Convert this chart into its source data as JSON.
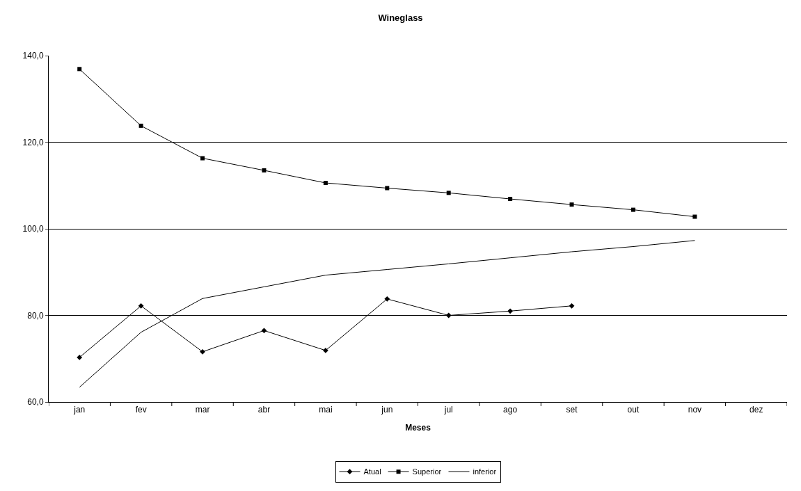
{
  "chart_data": {
    "type": "line",
    "title": "Wineglass",
    "xlabel": "Meses",
    "categories": [
      "jan",
      "fev",
      "mar",
      "abr",
      "mai",
      "jun",
      "jul",
      "ago",
      "set",
      "out",
      "nov",
      "dez"
    ],
    "series": [
      {
        "name": "Atual",
        "color": "#000000",
        "marker": "diamond",
        "values": [
          70.3,
          82.2,
          71.6,
          76.5,
          71.9,
          83.8,
          80.0,
          81.0,
          82.2,
          null,
          null,
          null
        ]
      },
      {
        "name": "Superior",
        "color": "#000000",
        "marker": "square",
        "values": [
          136.9,
          123.8,
          116.3,
          113.5,
          110.6,
          109.4,
          108.3,
          106.9,
          105.6,
          104.4,
          102.8,
          null
        ]
      },
      {
        "name": "inferior",
        "color": "#000000",
        "marker": "none",
        "values": [
          63.4,
          76.1,
          83.9,
          86.6,
          89.3,
          90.6,
          91.9,
          93.3,
          94.7,
          95.9,
          97.3,
          null
        ]
      }
    ],
    "ylim": [
      60,
      140
    ],
    "yticks": [
      {
        "value": 60,
        "label": "60,0"
      },
      {
        "value": 80,
        "label": "80,0"
      },
      {
        "value": 100,
        "label": "100,0"
      },
      {
        "value": 120,
        "label": "120,0"
      },
      {
        "value": 140,
        "label": "140,0"
      }
    ],
    "grid": "y",
    "legend": "bottom",
    "line_style": "solid"
  }
}
